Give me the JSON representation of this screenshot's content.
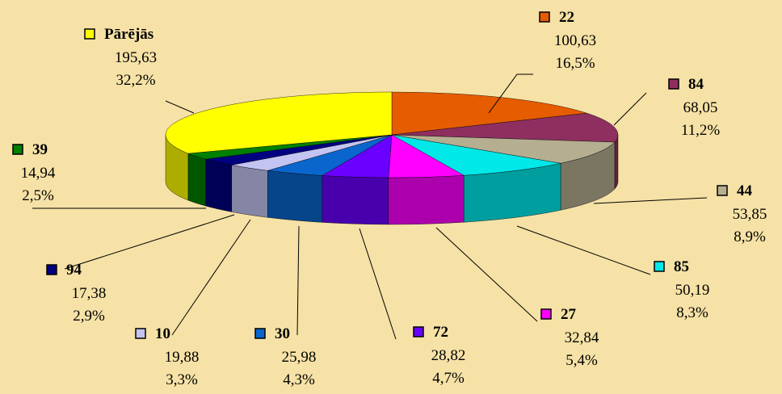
{
  "chart_data": {
    "type": "pie3d",
    "categories": [
      "22",
      "84",
      "44",
      "85",
      "27",
      "72",
      "30",
      "10",
      "94",
      "39",
      "Pārējās"
    ],
    "values": [
      100.63,
      68.05,
      53.85,
      50.19,
      32.84,
      28.82,
      25.98,
      19.88,
      17.38,
      14.94,
      195.63
    ],
    "value_labels": [
      "100,63",
      "68,05",
      "53,85",
      "50,19",
      "32,84",
      "28,82",
      "25,98",
      "19,88",
      "17,38",
      "14,94",
      "195,63"
    ],
    "percents": [
      16.5,
      11.2,
      8.9,
      8.3,
      5.4,
      4.7,
      4.3,
      3.3,
      2.9,
      2.5,
      32.2
    ],
    "percent_labels": [
      "16,5%",
      "11,2%",
      "8,9%",
      "8,3%",
      "5,4%",
      "4,7%",
      "4,3%",
      "3,3%",
      "2,9%",
      "2,5%",
      "32,2%"
    ],
    "colors": [
      "#e65c00",
      "#8e2f60",
      "#b5ae90",
      "#00e8e8",
      "#ff00ff",
      "#6a00ff",
      "#0a66cc",
      "#c4c4f2",
      "#000080",
      "#008000",
      "#ffff00"
    ]
  }
}
